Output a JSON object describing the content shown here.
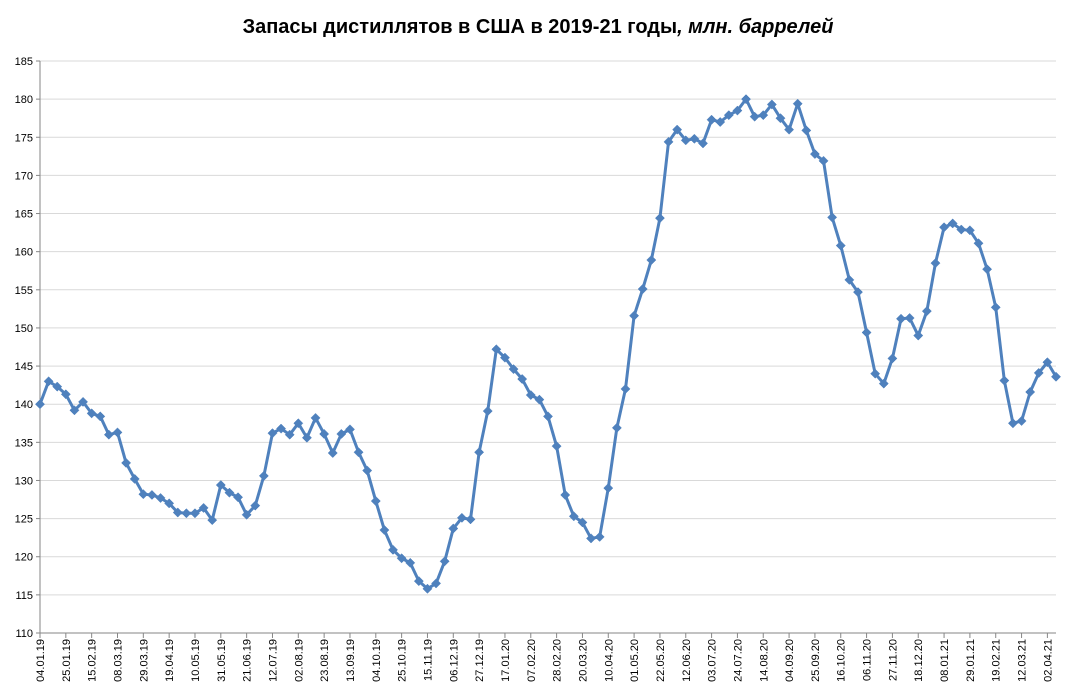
{
  "chart_data": {
    "type": "line",
    "title": "Запасы дистиллятов в США в 2019-21 годы",
    "title_unit": ", млн. баррелей",
    "xlabel": "",
    "ylabel": "",
    "ylim": [
      110,
      185
    ],
    "yticks": [
      110,
      115,
      120,
      125,
      130,
      135,
      140,
      145,
      150,
      155,
      160,
      165,
      170,
      175,
      180,
      185
    ],
    "grid": "horizontal",
    "legend": "none",
    "series_color": "#4f81bd",
    "x_tick_labels": [
      "04.01.19",
      "25.01.19",
      "15.02.19",
      "08.03.19",
      "29.03.19",
      "19.04.19",
      "10.05.19",
      "31.05.19",
      "21.06.19",
      "12.07.19",
      "02.08.19",
      "23.08.19",
      "13.09.19",
      "04.10.19",
      "25.10.19",
      "15.11.19",
      "06.12.19",
      "27.12.19",
      "17.01.20",
      "07.02.20",
      "28.02.20",
      "20.03.20",
      "10.04.20",
      "01.05.20",
      "22.05.20",
      "12.06.20",
      "03.07.20",
      "24.07.20",
      "14.08.20",
      "04.09.20",
      "25.09.20",
      "16.10.20",
      "06.11.20",
      "27.11.20",
      "18.12.20",
      "08.01.21",
      "29.01.21",
      "19.02.21",
      "12.03.21",
      "02.04.21"
    ],
    "x_tick_every": 3,
    "series": [
      {
        "values": [
          140.0,
          143.0,
          142.3,
          141.3,
          139.2,
          140.3,
          138.8,
          138.4,
          136.0,
          136.3,
          132.3,
          130.2,
          128.2,
          128.1,
          127.7,
          127.0,
          125.8,
          125.7,
          125.7,
          126.4,
          124.8,
          129.4,
          128.4,
          127.8,
          125.5,
          126.7,
          130.6,
          136.2,
          136.8,
          136.0,
          137.5,
          135.6,
          138.2,
          136.1,
          133.6,
          136.1,
          136.7,
          133.7,
          131.3,
          127.3,
          123.5,
          120.9,
          119.8,
          119.2,
          116.8,
          115.8,
          116.5,
          119.4,
          123.7,
          125.1,
          124.9,
          133.7,
          139.1,
          147.2,
          146.1,
          144.6,
          143.3,
          141.2,
          140.6,
          138.4,
          134.5,
          128.1,
          125.3,
          124.5,
          122.4,
          122.6,
          129.0,
          136.9,
          142.0,
          151.6,
          155.1,
          158.9,
          164.4,
          174.4,
          176.0,
          174.6,
          174.8,
          174.2,
          177.3,
          177.0,
          177.9,
          178.5,
          180.0,
          177.7,
          177.9,
          179.3,
          177.5,
          176.0,
          179.4,
          175.9,
          172.8,
          171.9,
          164.5,
          160.8,
          156.3,
          154.7,
          149.4,
          144.0,
          142.7,
          146.0,
          151.2,
          151.3,
          149.0,
          152.2,
          158.5,
          163.2,
          163.7,
          162.9,
          162.8,
          161.1,
          157.7,
          152.7,
          143.1,
          137.5,
          137.8,
          141.6,
          144.1,
          145.5,
          143.6
        ]
      }
    ]
  }
}
